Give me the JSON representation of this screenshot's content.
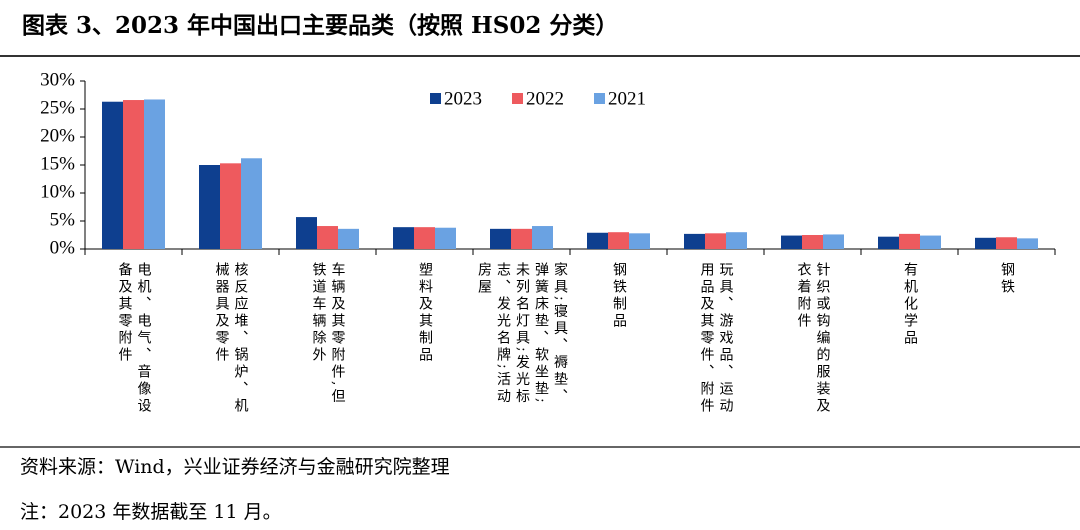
{
  "chart_data": {
    "type": "bar",
    "title": "图表 3、2023 年中国出口主要品类（按照 HS02 分类）",
    "categories": [
      "电机、电气、音像设备及其零附件",
      "核反应堆、锅炉、机械器具及零件",
      "车辆及其零附件,但铁道车辆除外",
      "塑料及其制品",
      "家具;寝具、褥垫、弹簧床垫、软坐垫;未列名灯具;发光标志、发光名牌;活动房屋",
      "钢铁制品",
      "玩具、游戏品、运动用品及其零件、附件",
      "针织或钩编的服装及衣着附件",
      "有机化学品",
      "钢铁"
    ],
    "series": [
      {
        "name": "2023",
        "color": "#0e3f8f",
        "values": [
          26.3,
          15.0,
          5.7,
          3.9,
          3.6,
          2.9,
          2.7,
          2.4,
          2.2,
          2.0
        ]
      },
      {
        "name": "2022",
        "color": "#ee5a5e",
        "values": [
          26.6,
          15.3,
          4.1,
          3.9,
          3.6,
          3.0,
          2.8,
          2.5,
          2.7,
          2.1
        ]
      },
      {
        "name": "2021",
        "color": "#6aa2e2",
        "values": [
          26.7,
          16.2,
          3.6,
          3.8,
          4.1,
          2.8,
          3.0,
          2.6,
          2.4,
          1.9
        ]
      }
    ],
    "ylim": [
      0,
      30
    ],
    "yticks": [
      {
        "value": 0,
        "label": "0%"
      },
      {
        "value": 5,
        "label": "5%"
      },
      {
        "value": 10,
        "label": "10%"
      },
      {
        "value": 15,
        "label": "15%"
      },
      {
        "value": 20,
        "label": "20%"
      },
      {
        "value": 25,
        "label": "25%"
      },
      {
        "value": 30,
        "label": "30%"
      }
    ],
    "source": "资料来源：Wind，兴业证券经济与金融研究院整理",
    "note": "注：2023 年数据截至 11 月。"
  }
}
